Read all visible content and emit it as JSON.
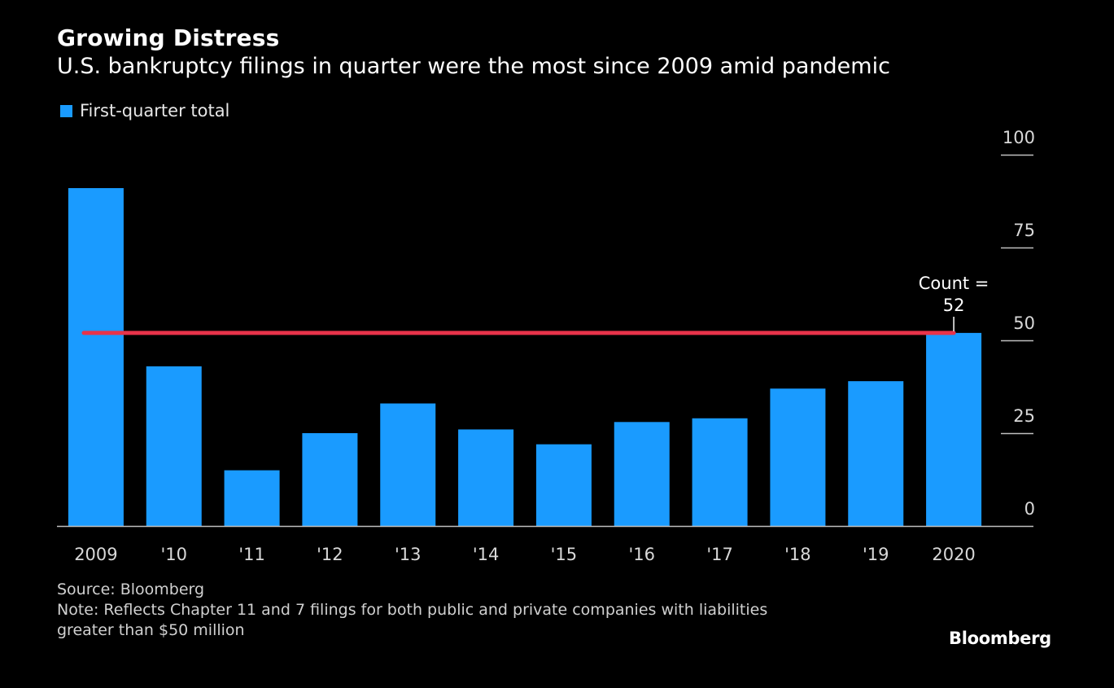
{
  "title": "Growing Distress",
  "subtitle": "U.S. bankruptcy filings in quarter were the most since 2009 amid pandemic",
  "legend": {
    "label": "First-quarter total",
    "color": "#1a9bff"
  },
  "source": "Source: Bloomberg",
  "note_line1": "Note: Reflects Chapter 11 and 7 filings for both public and private companies with liabilities",
  "note_line2": "greater than $50 million",
  "brand": "Bloomberg",
  "colors": {
    "bar": "#1a9bff",
    "reference_line": "#e8334a",
    "background": "#000000"
  },
  "chart_data": {
    "type": "bar",
    "categories": [
      "2009",
      "'10",
      "'11",
      "'12",
      "'13",
      "'14",
      "'15",
      "'16",
      "'17",
      "'18",
      "'19",
      "2020"
    ],
    "values": [
      91,
      43,
      15,
      25,
      33,
      26,
      22,
      28,
      29,
      37,
      39,
      52
    ],
    "series": [
      {
        "name": "First-quarter total",
        "values": [
          91,
          43,
          15,
          25,
          33,
          26,
          22,
          28,
          29,
          37,
          39,
          52
        ]
      }
    ],
    "ylim": [
      0,
      100
    ],
    "yticks": [
      0,
      25,
      50,
      75,
      100
    ],
    "reference_line": {
      "value": 52
    },
    "annotation": {
      "line1": "Count =",
      "line2": "52",
      "category": "2020",
      "value": 52
    },
    "grid": false,
    "legend_position": "top-left"
  }
}
